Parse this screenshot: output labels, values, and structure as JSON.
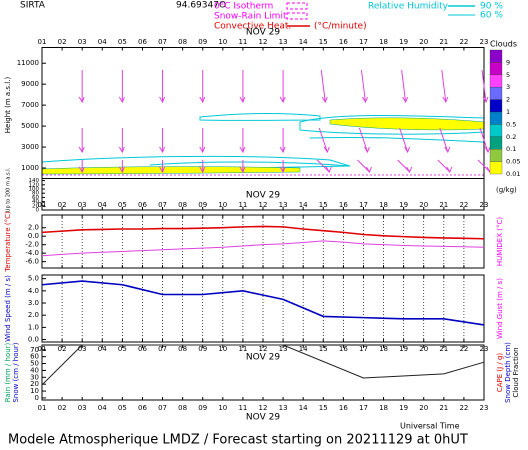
{
  "header": {
    "site": "SIRTA",
    "coords": "94.69347O",
    "isotherm": "0°C Isotherm",
    "snow_rain": "Snow-Rain Limit",
    "convective": "Convective Heat.",
    "convective_unit": "(°C/minute)",
    "rh": "Relative Humidity",
    "rh_levels": [
      "90 %",
      "60 %"
    ]
  },
  "time_axis": {
    "date": "NOV 29",
    "label": "Universal Time",
    "xlim": [
      1,
      23
    ],
    "xticks": [
      {
        "value": 1,
        "label": "01"
      },
      {
        "value": 2,
        "label": "02"
      },
      {
        "value": 3,
        "label": "03"
      },
      {
        "value": 4,
        "label": "04"
      },
      {
        "value": 5,
        "label": "05"
      },
      {
        "value": 6,
        "label": "06"
      },
      {
        "value": 7,
        "label": "07"
      },
      {
        "value": 8,
        "label": "08"
      },
      {
        "value": 9,
        "label": "09"
      },
      {
        "value": 10,
        "label": "10"
      },
      {
        "value": 11,
        "label": "11"
      },
      {
        "value": 12,
        "label": "12"
      },
      {
        "value": 13,
        "label": "13"
      },
      {
        "value": 14,
        "label": "14"
      },
      {
        "value": 15,
        "label": "15"
      },
      {
        "value": 16,
        "label": "16"
      },
      {
        "value": 17,
        "label": "17"
      },
      {
        "value": 18,
        "label": "18"
      },
      {
        "value": 19,
        "label": "19"
      },
      {
        "value": 20,
        "label": "20"
      },
      {
        "value": 21,
        "label": "21"
      },
      {
        "value": 22,
        "label": "22"
      },
      {
        "value": 23,
        "label": "23"
      }
    ]
  },
  "chart_data": [
    {
      "type": "contour",
      "ylabel": "Height (m a.s.l.)",
      "ylim": [
        0,
        12500
      ],
      "yticks": [
        1000,
        3000,
        5000,
        7000,
        9000,
        11000
      ],
      "low_label": "Up to 200 m a.s.l.",
      "low_ylim": [
        0,
        150
      ],
      "low_yticks": [
        0,
        20,
        40,
        60,
        80,
        100,
        120,
        140
      ],
      "colorbar": {
        "title": "Clouds",
        "unit": "(g/kg)",
        "levels": [
          9,
          5,
          3,
          2,
          1,
          0.5,
          0.2,
          0.1,
          0.05,
          0.01
        ],
        "colors": [
          "#8a00c8",
          "#c800c8",
          "#ff40ff",
          "#6a6aff",
          "#0000c8",
          "#0080c8",
          "#00c8c8",
          "#00a080",
          "#90c840",
          "#ffff00"
        ]
      }
    },
    {
      "type": "line",
      "ylabel": "Temperature (°C)",
      "y2label": "HUMIDEX (°C)",
      "ylim": [
        -7.5,
        5
      ],
      "yticks": [
        {
          "value": -6,
          "label": "-6.0"
        },
        {
          "value": -4,
          "label": "-4.0"
        },
        {
          "value": -2,
          "label": "-2.0"
        },
        {
          "value": 0,
          "label": "0.0"
        },
        {
          "value": 2,
          "label": "2.0"
        }
      ],
      "vgrid": true,
      "x": [
        1,
        2,
        3,
        4,
        5,
        6,
        7,
        8,
        9,
        10,
        11,
        12,
        13,
        14,
        15,
        16,
        17,
        18,
        19,
        20,
        21,
        22,
        23
      ],
      "series": [
        {
          "color": "#e00000",
          "values": [
            0.9,
            1.2,
            1.5,
            1.6,
            1.7,
            1.7,
            1.8,
            1.8,
            1.9,
            2.0,
            2.2,
            2.3,
            2.2,
            1.7,
            1.3,
            0.9,
            0.4,
            0.1,
            -0.1,
            -0.3,
            -0.4,
            -0.5,
            -0.6
          ]
        },
        {
          "color": "#e040e0",
          "values": [
            -4.6,
            -4.3,
            -4.0,
            -3.8,
            -3.6,
            -3.4,
            -3.2,
            -3.0,
            -2.8,
            -2.6,
            -2.3,
            -2.0,
            -1.8,
            -1.5,
            -1.1,
            -1.4,
            -1.8,
            -2.0,
            -2.2,
            -2.3,
            -2.4,
            -2.5,
            -2.6
          ]
        }
      ]
    },
    {
      "type": "line",
      "ylabel": "Wind Speed (m / s)",
      "y2label": "Wind Gust (m / s)",
      "ylim": [
        -0.2,
        5.3
      ],
      "yticks": [
        {
          "value": 0,
          "label": "0.0"
        },
        {
          "value": 1,
          "label": "1.0"
        },
        {
          "value": 2,
          "label": "2.0"
        },
        {
          "value": 3,
          "label": "3.0"
        },
        {
          "value": 4,
          "label": "4.0"
        },
        {
          "value": 5,
          "label": "5.0"
        }
      ],
      "vgrid": true,
      "x": [
        1,
        3,
        5,
        7,
        9,
        11,
        13,
        15,
        17,
        19,
        21,
        23
      ],
      "series": [
        {
          "color": "#0000c0",
          "values": [
            4.5,
            4.8,
            4.5,
            3.7,
            3.7,
            4.0,
            3.3,
            1.9,
            1.8,
            1.7,
            1.7,
            1.2
          ]
        }
      ]
    },
    {
      "type": "line",
      "ylabels": [
        "Rain (mm / hour)",
        "Snow (cm / hour)"
      ],
      "y2labels": [
        "CAPE (J / g)",
        "Snow Depth (cm)",
        "Cloud Fraction"
      ],
      "ylim": [
        -3,
        77
      ],
      "yticks": [
        0,
        10,
        20,
        30,
        40,
        50,
        60,
        70
      ],
      "vgrid": false,
      "x": [
        1,
        3,
        13,
        17,
        21,
        23
      ],
      "series": [
        {
          "color": "#202020",
          "values": [
            19,
            77,
            77,
            29,
            35,
            52
          ]
        }
      ]
    }
  ],
  "footer": "Modele Atmospherique LMDZ / Forecast starting on 20211129 at 0hUT"
}
